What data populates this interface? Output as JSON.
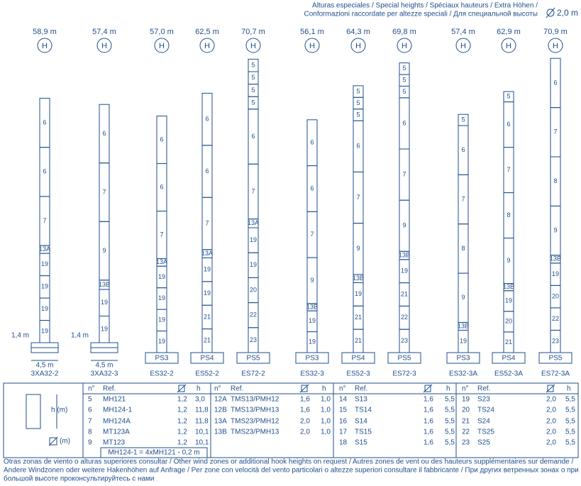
{
  "header": {
    "line1": "Alturas especiales / Special heights / Spéciaux hauteurs / Extra Höhen /",
    "line2": "Conformazioni raccordate per altezze speciali / Для специальной высоты",
    "diameter": "2,0 m"
  },
  "towers": [
    {
      "height": "58,9 m",
      "marker": "H",
      "segments": [
        "6",
        "6",
        "7",
        "13A",
        "19",
        "19",
        "19",
        "19"
      ],
      "base_height": "1,4 m",
      "base_width": "4,5 m",
      "name": "3XA32-2"
    },
    {
      "height": "57,4 m",
      "marker": "H",
      "segments": [
        "6",
        "7",
        "9",
        "13B",
        "19",
        "19"
      ],
      "base_height": "1,4 m",
      "base_width": "4,5 m",
      "name": "3XA32-3"
    },
    {
      "height": "57,0 m",
      "marker": "H",
      "segments": [
        "6",
        "6",
        "7",
        "13A",
        "19",
        "19",
        "19",
        "19"
      ],
      "base": "PS3",
      "name": "ES32-2"
    },
    {
      "height": "62,5 m",
      "marker": "H",
      "segments": [
        "6",
        "6",
        "7",
        "13A",
        "19",
        "19",
        "21",
        "21"
      ],
      "base": "PS4",
      "name": "ES52-2"
    },
    {
      "height": "70,7 m",
      "marker": "H",
      "segments": [
        "5",
        "5",
        "5",
        "5",
        "6",
        "7",
        "13A",
        "19",
        "19",
        "20",
        "22",
        "23"
      ],
      "base": "PS5",
      "name": "ES72-2"
    },
    {
      "height": "56,1 m",
      "marker": "H",
      "segments": [
        "6",
        "6",
        "7",
        "9",
        "13B",
        "19",
        "19"
      ],
      "base": "PS3",
      "name": "ES32-3"
    },
    {
      "height": "64,3 m",
      "marker": "H",
      "segments": [
        "5",
        "5",
        "5",
        "6",
        "7",
        "9",
        "13B",
        "19",
        "21",
        "21"
      ],
      "base": "PS4",
      "name": "ES52-3"
    },
    {
      "height": "69,8 m",
      "marker": "H",
      "segments": [
        "5",
        "5",
        "5",
        "6",
        "7",
        "9",
        "13B",
        "19",
        "21",
        "22",
        "23"
      ],
      "base": "PS5",
      "name": "ES72-3"
    },
    {
      "height": "57,4 m",
      "marker": "H",
      "segments": [
        "5",
        "6",
        "7",
        "8",
        "9",
        "13B",
        "19"
      ],
      "base": "PS3",
      "name": "ES32-3A"
    },
    {
      "height": "62,9 m",
      "marker": "H",
      "segments": [
        "5",
        "6",
        "7",
        "8",
        "9",
        "13B",
        "19",
        "20",
        "21"
      ],
      "base": "PS4",
      "name": "ES52-3A"
    },
    {
      "height": "70,9 m",
      "marker": "H",
      "segments": [
        "6",
        "7",
        "8",
        "9",
        "13B",
        "19",
        "20",
        "22",
        "23"
      ],
      "base": "PS5",
      "name": "ES72-3A"
    }
  ],
  "legend": {
    "height_label": "h (m)",
    "diameter_label": "(m)"
  },
  "table": {
    "groups": [
      {
        "header": [
          "n°",
          "Ref.",
          "h"
        ],
        "rows": [
          [
            "5",
            "MH121",
            "1,2",
            "3,0"
          ],
          [
            "6",
            "MH124-1",
            "1,2",
            "11,8"
          ],
          [
            "7",
            "MH124A",
            "1,2",
            "11,8"
          ],
          [
            "8",
            "MT123A",
            "1,2",
            "10,1"
          ],
          [
            "9",
            "MT123",
            "1,2",
            "10,1"
          ]
        ],
        "note": "MH124-1 = 4xMH121 - 0,2 m"
      },
      {
        "header": [
          "n°",
          "Ref.",
          "h"
        ],
        "rows": [
          [
            "12A",
            "TMS13/PMH12",
            "1,6",
            "1,0"
          ],
          [
            "12B",
            "TMS13/PMH13",
            "1,6",
            "1,0"
          ],
          [
            "13A",
            "TMS23/PMH12",
            "2,0",
            "1,0"
          ],
          [
            "13B",
            "TMS23/PMH13",
            "2,0",
            "1,0"
          ]
        ]
      },
      {
        "header": [
          "n°",
          "Ref.",
          "h"
        ],
        "rows": [
          [
            "14",
            "S13",
            "1,6",
            "5,5"
          ],
          [
            "15",
            "TS14",
            "1,6",
            "5,5"
          ],
          [
            "16",
            "S14",
            "1,6",
            "5,5"
          ],
          [
            "17",
            "TS15",
            "1,6",
            "5,5"
          ],
          [
            "18",
            "S15",
            "1,6",
            "5,5"
          ]
        ]
      },
      {
        "header": [
          "n°",
          "Ref.",
          "h"
        ],
        "rows": [
          [
            "19",
            "S23",
            "2,0",
            "5,5"
          ],
          [
            "20",
            "TS24",
            "2,0",
            "5,5"
          ],
          [
            "21",
            "S24",
            "2,0",
            "5,5"
          ],
          [
            "22",
            "TS25",
            "2,0",
            "5,5"
          ],
          [
            "23",
            "S25",
            "2,0",
            "5,5"
          ]
        ]
      }
    ]
  },
  "footer": [
    "Otras zonas de viento o alturas superiores consultar / Other wind zones or additional hook heights on request / Autres zones de vent ou des hauteurs supplémentaires sur demande /",
    "Andere Windzonen oder weitere Hakenhöhen auf Anfrage / Per zone con velocità del vento particolari o altezze superiori consultare il fabbricante / При других ветренных зонах о при",
    "большой высоте проконсультируйтесь с нами"
  ]
}
